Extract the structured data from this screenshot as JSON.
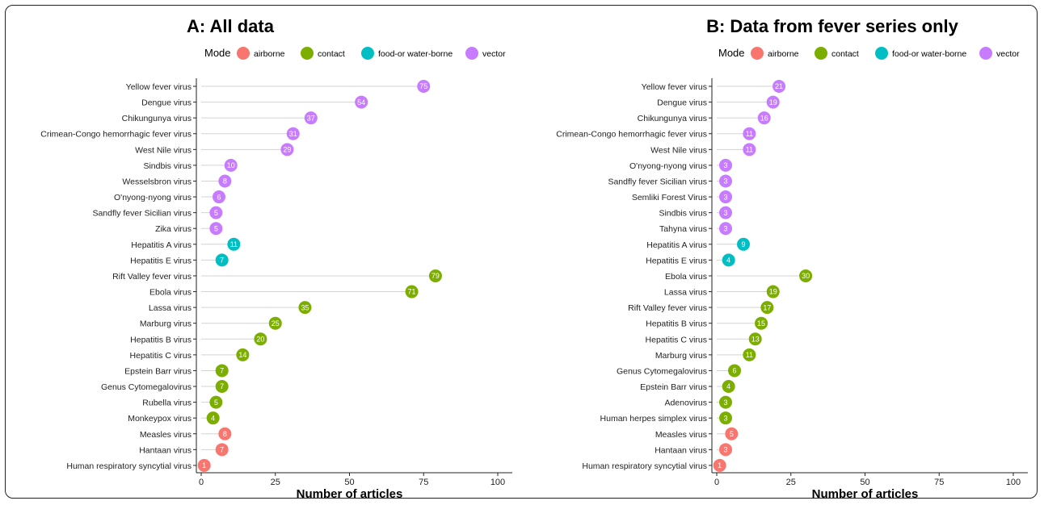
{
  "colors": {
    "airborne": "#F8766D",
    "contact": "#7CAE00",
    "food-or water-borne": "#00BFC4",
    "vector": "#C77CFF"
  },
  "chart_data": [
    {
      "type": "lollipop",
      "title": "A: All data",
      "legend_title": "Mode",
      "legend": [
        "airborne",
        "contact",
        "food-or water-borne",
        "vector"
      ],
      "xlabel": "Number of articles",
      "xlim": [
        0,
        100
      ],
      "xticks": [
        0,
        25,
        50,
        75,
        100
      ],
      "categories": [
        "Yellow fever virus",
        "Dengue virus",
        "Chikungunya virus",
        "Crimean-Congo hemorrhagic fever virus",
        "West Nile virus",
        "Sindbis virus",
        "Wesselsbron virus",
        "O'nyong-nyong virus",
        "Sandfly fever Sicilian virus",
        "Zika virus",
        "Hepatitis A virus",
        "Hepatitis E virus",
        "Rift Valley fever virus",
        "Ebola virus",
        "Lassa virus",
        "Marburg virus",
        "Hepatitis B virus",
        "Hepatitis C virus",
        "Epstein Barr virus",
        "Genus Cytomegalovirus",
        "Rubella virus",
        "Monkeypox virus",
        "Measles virus",
        "Hantaan virus",
        "Human respiratory syncytial virus"
      ],
      "values": [
        75,
        54,
        37,
        31,
        29,
        10,
        8,
        6,
        5,
        5,
        11,
        7,
        79,
        71,
        35,
        25,
        20,
        14,
        7,
        7,
        5,
        4,
        8,
        7,
        1
      ],
      "modes": [
        "vector",
        "vector",
        "vector",
        "vector",
        "vector",
        "vector",
        "vector",
        "vector",
        "vector",
        "vector",
        "food-or water-borne",
        "food-or water-borne",
        "contact",
        "contact",
        "contact",
        "contact",
        "contact",
        "contact",
        "contact",
        "contact",
        "contact",
        "contact",
        "airborne",
        "airborne",
        "airborne"
      ]
    },
    {
      "type": "lollipop",
      "title": "B: Data from fever series only",
      "legend_title": "Mode",
      "legend": [
        "airborne",
        "contact",
        "food-or water-borne",
        "vector"
      ],
      "xlabel": "Number of articles",
      "xlim": [
        0,
        100
      ],
      "xticks": [
        0,
        25,
        50,
        75,
        100
      ],
      "categories": [
        "Yellow fever virus",
        "Dengue virus",
        "Chikungunya virus",
        "Crimean-Congo hemorrhagic fever virus",
        "West Nile virus",
        "O'nyong-nyong virus",
        "Sandfly fever Sicilian virus",
        "Semliki Forest Virus",
        "Sindbis virus",
        "Tahyna virus",
        "Hepatitis A virus",
        "Hepatitis E virus",
        "Ebola virus",
        "Lassa virus",
        "Rift Valley fever virus",
        "Hepatitis B virus",
        "Hepatitis C virus",
        "Marburg virus",
        "Genus Cytomegalovirus",
        "Epstein Barr virus",
        "Adenovirus",
        "Human herpes simplex virus",
        "Measles virus",
        "Hantaan virus",
        "Human respiratory syncytial virus"
      ],
      "values": [
        21,
        19,
        16,
        11,
        11,
        3,
        3,
        3,
        3,
        3,
        9,
        4,
        30,
        19,
        17,
        15,
        13,
        11,
        6,
        4,
        3,
        3,
        5,
        3,
        1
      ],
      "modes": [
        "vector",
        "vector",
        "vector",
        "vector",
        "vector",
        "vector",
        "vector",
        "vector",
        "vector",
        "vector",
        "food-or water-borne",
        "food-or water-borne",
        "contact",
        "contact",
        "contact",
        "contact",
        "contact",
        "contact",
        "contact",
        "contact",
        "contact",
        "contact",
        "airborne",
        "airborne",
        "airborne"
      ]
    }
  ]
}
